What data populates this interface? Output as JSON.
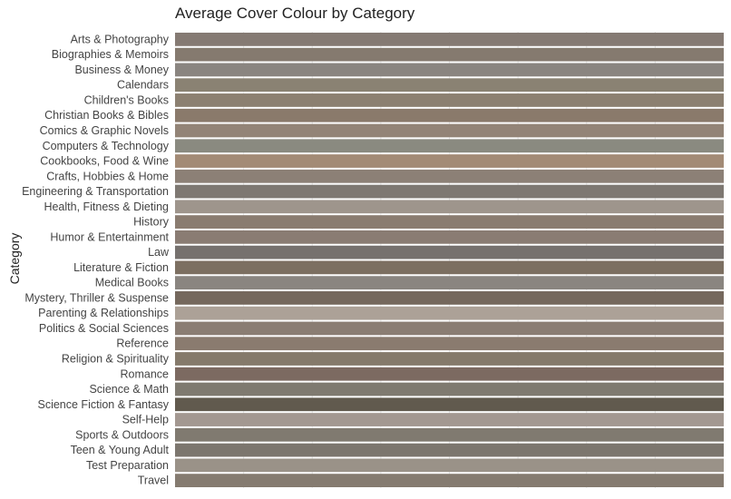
{
  "chart_data": {
    "type": "bar",
    "orientation": "horizontal",
    "title": "Average Cover Colour by Category",
    "ylabel": "Category",
    "xlabel": "",
    "xlim": [
      0,
      1
    ],
    "grid": true,
    "legend": "none",
    "categories": [
      "Arts & Photography",
      "Biographies & Memoirs",
      "Business & Money",
      "Calendars",
      "Children's Books",
      "Christian Books & Bibles",
      "Comics & Graphic Novels",
      "Computers & Technology",
      "Cookbooks, Food & Wine",
      "Crafts, Hobbies & Home",
      "Engineering & Transportation",
      "Health, Fitness & Dieting",
      "History",
      "Humor & Entertainment",
      "Law",
      "Literature & Fiction",
      "Medical Books",
      "Mystery, Thriller & Suspense",
      "Parenting & Relationships",
      "Politics & Social Sciences",
      "Reference",
      "Religion & Spirituality",
      "Romance",
      "Science & Math",
      "Science Fiction & Fantasy",
      "Self-Help",
      "Sports & Outdoors",
      "Teen & Young Adult",
      "Test Preparation",
      "Travel"
    ],
    "values": [
      1,
      1,
      1,
      1,
      1,
      1,
      1,
      1,
      1,
      1,
      1,
      1,
      1,
      1,
      1,
      1,
      1,
      1,
      1,
      1,
      1,
      1,
      1,
      1,
      1,
      1,
      1,
      1,
      1,
      1
    ],
    "colors": [
      "#857a73",
      "#857a6f",
      "#8a8580",
      "#8a8273",
      "#8c8071",
      "#8a7a6b",
      "#938477",
      "#8a8a80",
      "#a38b76",
      "#8c8076",
      "#7e7872",
      "#9e958c",
      "#8a7c70",
      "#8a7c73",
      "#76716e",
      "#7c6f61",
      "#8a8580",
      "#75685d",
      "#aca197",
      "#8a7d73",
      "#8a7b6f",
      "#857a6b",
      "#7c6a61",
      "#7f7a70",
      "#615a4e",
      "#a39891",
      "#807a70",
      "#7c766e",
      "#9a9288",
      "#857b70"
    ]
  }
}
